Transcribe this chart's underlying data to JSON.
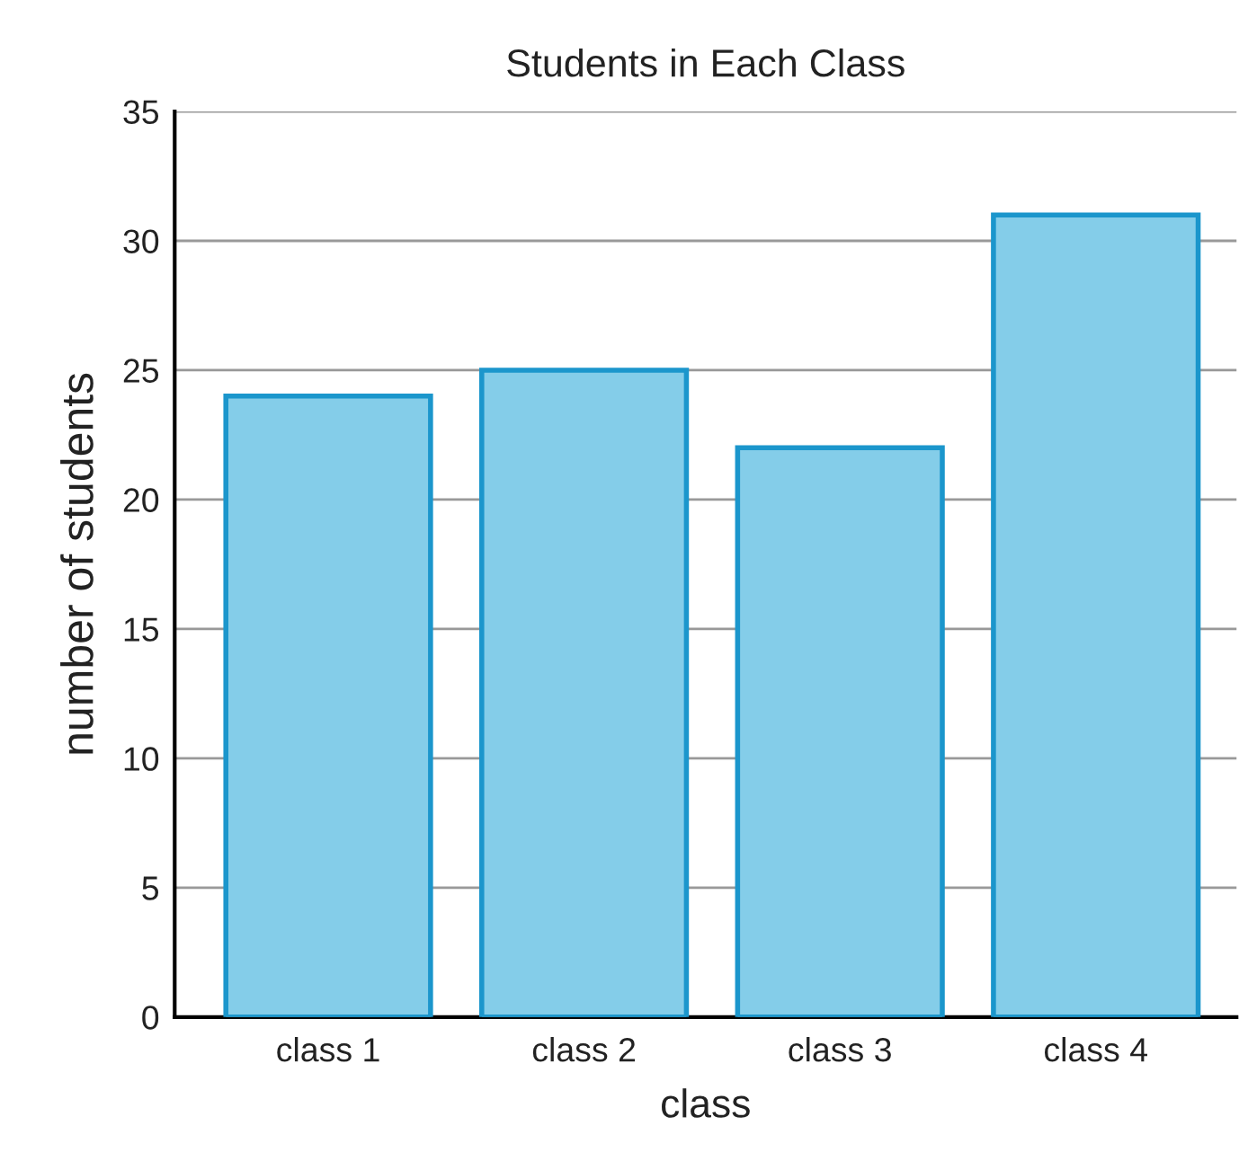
{
  "chart_data": {
    "type": "bar",
    "title": "Students in Each Class",
    "xlabel": "class",
    "ylabel": "number of students",
    "categories": [
      "class 1",
      "class 2",
      "class 3",
      "class 4"
    ],
    "values": [
      24,
      25,
      22,
      31
    ],
    "color": "#84cde9",
    "ylim": [
      0,
      35
    ],
    "yticks": [
      0,
      5,
      10,
      15,
      20,
      25,
      30,
      35
    ],
    "grid": "y",
    "legend": false
  }
}
